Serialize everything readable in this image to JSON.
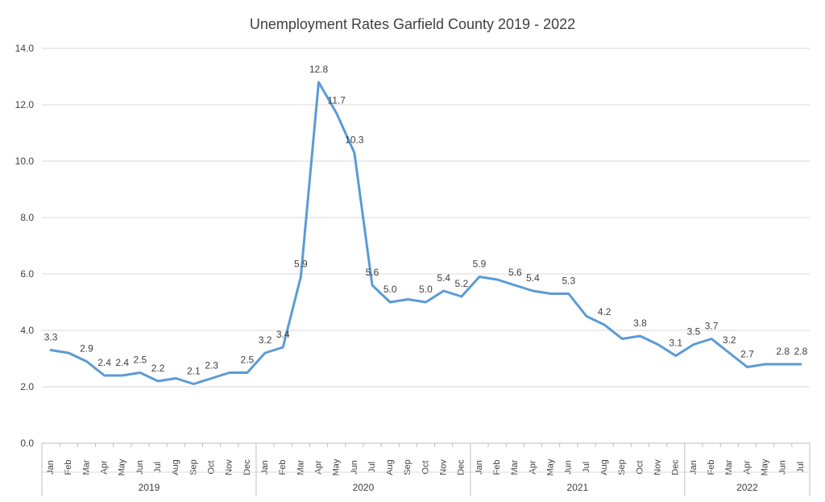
{
  "chart_data": {
    "type": "line",
    "title": "Unemployment Rates Garfield County  2019 - 2022",
    "xlabel": "",
    "ylabel": "",
    "ylim": [
      0,
      14
    ],
    "yticks": [
      "0.0",
      "2.0",
      "4.0",
      "6.0",
      "8.0",
      "10.0",
      "12.0",
      "14.0"
    ],
    "grid": true,
    "legend": "none",
    "color": "#5b9bd5",
    "categories": [
      "Jan",
      "Feb",
      "Mar",
      "Apr",
      "May",
      "Jun",
      "Jul",
      "Aug",
      "Sep",
      "Oct",
      "Nov",
      "Dec",
      "Jan",
      "Feb",
      "Mar",
      "Apr",
      "May",
      "Jun",
      "Jul",
      "Aug",
      "Sep",
      "Oct",
      "Nov",
      "Dec",
      "Jan",
      "Feb",
      "Mar",
      "Apr",
      "May",
      "Jun",
      "Jul",
      "Aug",
      "Sep",
      "Oct",
      "Nov",
      "Dec",
      "Jan",
      "Feb",
      "Mar",
      "Apr",
      "May",
      "Jun",
      "Jul"
    ],
    "groups": [
      {
        "label": "2019",
        "count": 12
      },
      {
        "label": "2020",
        "count": 12
      },
      {
        "label": "2021",
        "count": 12
      },
      {
        "label": "2022",
        "count": 7
      }
    ],
    "values": [
      3.3,
      3.2,
      2.9,
      2.4,
      2.4,
      2.5,
      2.2,
      2.3,
      2.1,
      2.3,
      2.5,
      2.5,
      3.2,
      3.4,
      5.9,
      12.8,
      11.7,
      10.3,
      5.6,
      5.0,
      5.1,
      5.0,
      5.4,
      5.2,
      5.9,
      5.8,
      5.6,
      5.4,
      5.3,
      5.3,
      4.5,
      4.2,
      3.7,
      3.8,
      3.5,
      3.1,
      3.5,
      3.7,
      3.2,
      2.7,
      2.8,
      2.8,
      2.8
    ],
    "data_labels": [
      "3.3",
      "",
      "2.9",
      "2.4",
      "2.4",
      "2.5",
      "2.2",
      "",
      "2.1",
      "2.3",
      "",
      "2.5",
      "3.2",
      "3.4",
      "5.9",
      "12.8",
      "11.7",
      "10.3",
      "5.6",
      "5.0",
      "",
      "5.0",
      "5.4",
      "5.2",
      "5.9",
      "",
      "5.6",
      "5.4",
      "",
      "5.3",
      "",
      "4.2",
      "",
      "3.8",
      "",
      "3.1",
      "3.5",
      "3.7",
      "3.2",
      "2.7",
      "",
      "2.8",
      "2.8"
    ]
  }
}
